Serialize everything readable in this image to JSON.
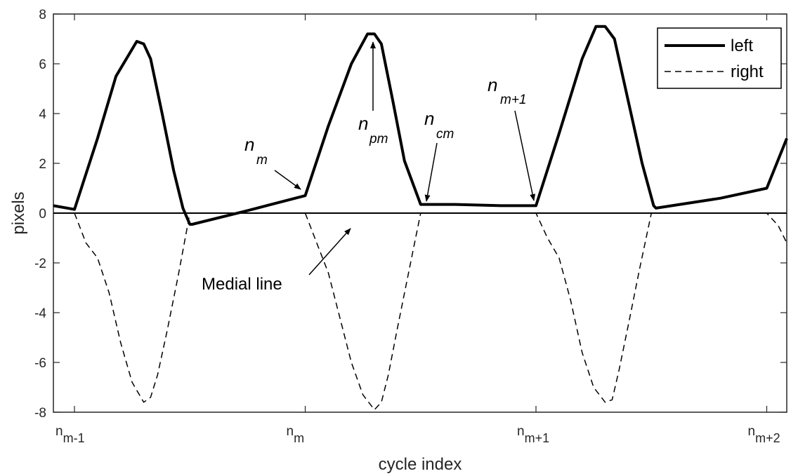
{
  "chart_data": {
    "type": "line",
    "title": "",
    "xlabel": "cycle index",
    "ylabel": "pixels",
    "xlim": [
      0,
      3.1
    ],
    "ylim": [
      -8,
      8
    ],
    "grid": false,
    "legend_position": "top-right",
    "yticks": [
      8,
      6,
      4,
      2,
      0,
      -2,
      -4,
      -6,
      -8
    ],
    "xticks": [
      {
        "value": 0,
        "base": "n",
        "sub": "m-1"
      },
      {
        "value": 1,
        "base": "n",
        "sub": "m"
      },
      {
        "value": 2,
        "base": "n",
        "sub": "m+1"
      },
      {
        "value": 3,
        "base": "n",
        "sub": "m+2"
      }
    ],
    "series": [
      {
        "name": "left",
        "style": "solid-thick",
        "color": "#000000",
        "x": [
          -0.1,
          0,
          0.1,
          0.18,
          0.27,
          0.3,
          0.33,
          0.38,
          0.43,
          0.47,
          0.5,
          0.51,
          0.75,
          1.0,
          1.1,
          1.2,
          1.27,
          1.3,
          1.33,
          1.38,
          1.43,
          1.5,
          1.51,
          1.65,
          1.85,
          2.0,
          2.1,
          2.2,
          2.26,
          2.3,
          2.34,
          2.4,
          2.46,
          2.51,
          2.52,
          2.8,
          3.0,
          3.1
        ],
        "values": [
          0.3,
          0.15,
          3.0,
          5.5,
          6.9,
          6.8,
          6.2,
          4.0,
          1.7,
          0.2,
          -0.45,
          -0.45,
          0.1,
          0.7,
          3.5,
          6.0,
          7.2,
          7.2,
          6.8,
          4.5,
          2.1,
          0.35,
          0.35,
          0.35,
          0.3,
          0.3,
          3.2,
          6.2,
          7.5,
          7.5,
          7.0,
          4.5,
          2.0,
          0.3,
          0.2,
          0.6,
          1.0,
          3.0
        ]
      },
      {
        "name": "right",
        "style": "dashed",
        "color": "#000000",
        "x": [
          0,
          0.05,
          0.1,
          0.15,
          0.2,
          0.25,
          0.3,
          0.33,
          0.36,
          0.4,
          0.45,
          0.5,
          1.0,
          1.05,
          1.1,
          1.15,
          1.2,
          1.25,
          1.3,
          1.33,
          1.36,
          1.4,
          1.45,
          1.5,
          2.0,
          2.05,
          2.1,
          2.15,
          2.2,
          2.25,
          2.3,
          2.33,
          2.36,
          2.4,
          2.45,
          2.5,
          3.0,
          3.05,
          3.1
        ],
        "values": [
          0,
          -1.2,
          -1.8,
          -3.2,
          -5.2,
          -6.8,
          -7.6,
          -7.4,
          -6.5,
          -4.8,
          -2.5,
          0,
          0,
          -1.2,
          -2.4,
          -4.2,
          -6.0,
          -7.3,
          -7.9,
          -7.6,
          -6.5,
          -4.6,
          -2.3,
          0,
          0,
          -1.0,
          -1.8,
          -3.5,
          -5.6,
          -7.0,
          -7.6,
          -7.5,
          -6.3,
          -4.5,
          -2.2,
          0,
          0,
          -0.5,
          -1.2
        ]
      }
    ],
    "medial_line": {
      "y": 0
    },
    "annotations": [
      {
        "id": "nm",
        "base": "n",
        "sub": "m",
        "target": [
          1.0,
          0.7
        ]
      },
      {
        "id": "npm",
        "base": "n",
        "sub": "pm",
        "target": [
          1.29,
          7.2
        ]
      },
      {
        "id": "ncm",
        "base": "n",
        "sub": "cm",
        "target": [
          1.5,
          0.35
        ]
      },
      {
        "id": "nm1",
        "base": "n",
        "sub": "m+1",
        "target": [
          2.0,
          0.3
        ]
      },
      {
        "id": "medial",
        "text": "Medial line",
        "target": [
          1.2,
          -0.6
        ]
      }
    ]
  }
}
